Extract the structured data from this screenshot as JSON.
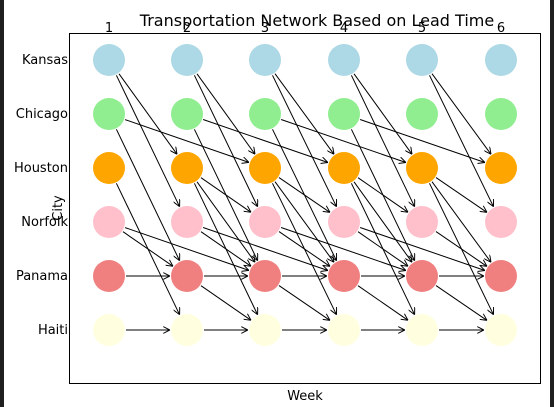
{
  "title": "Transportation Network Based on Lead Time",
  "xlabel": "Week",
  "ylabel": "City",
  "weeks": [
    "1",
    "2",
    "3",
    "4",
    "5",
    "6"
  ],
  "cities": [
    {
      "name": "Kansas",
      "color": "#ADD8E6"
    },
    {
      "name": "Chicago",
      "color": "#90EE90"
    },
    {
      "name": "Houston",
      "color": "#FFA500"
    },
    {
      "name": "Norfolk",
      "color": "#FFC0CB"
    },
    {
      "name": "Panama",
      "color": "#F08080"
    },
    {
      "name": "Haiti",
      "color": "#FFFFE0"
    }
  ],
  "edge_color": "#000000",
  "edges": [
    {
      "from": {
        "city": "Kansas",
        "week": 1
      },
      "to": {
        "city": "Houston",
        "week": 2
      }
    },
    {
      "from": {
        "city": "Kansas",
        "week": 1
      },
      "to": {
        "city": "Norfolk",
        "week": 2
      }
    },
    {
      "from": {
        "city": "Kansas",
        "week": 2
      },
      "to": {
        "city": "Houston",
        "week": 3
      }
    },
    {
      "from": {
        "city": "Kansas",
        "week": 2
      },
      "to": {
        "city": "Norfolk",
        "week": 3
      }
    },
    {
      "from": {
        "city": "Kansas",
        "week": 3
      },
      "to": {
        "city": "Houston",
        "week": 4
      }
    },
    {
      "from": {
        "city": "Kansas",
        "week": 3
      },
      "to": {
        "city": "Norfolk",
        "week": 4
      }
    },
    {
      "from": {
        "city": "Kansas",
        "week": 4
      },
      "to": {
        "city": "Houston",
        "week": 5
      }
    },
    {
      "from": {
        "city": "Kansas",
        "week": 4
      },
      "to": {
        "city": "Norfolk",
        "week": 5
      }
    },
    {
      "from": {
        "city": "Kansas",
        "week": 5
      },
      "to": {
        "city": "Houston",
        "week": 6
      }
    },
    {
      "from": {
        "city": "Kansas",
        "week": 5
      },
      "to": {
        "city": "Norfolk",
        "week": 6
      }
    },
    {
      "from": {
        "city": "Chicago",
        "week": 1
      },
      "to": {
        "city": "Houston",
        "week": 3
      }
    },
    {
      "from": {
        "city": "Chicago",
        "week": 1
      },
      "to": {
        "city": "Panama",
        "week": 2
      }
    },
    {
      "from": {
        "city": "Chicago",
        "week": 2
      },
      "to": {
        "city": "Houston",
        "week": 4
      }
    },
    {
      "from": {
        "city": "Chicago",
        "week": 2
      },
      "to": {
        "city": "Panama",
        "week": 3
      }
    },
    {
      "from": {
        "city": "Chicago",
        "week": 3
      },
      "to": {
        "city": "Houston",
        "week": 5
      }
    },
    {
      "from": {
        "city": "Chicago",
        "week": 3
      },
      "to": {
        "city": "Panama",
        "week": 4
      }
    },
    {
      "from": {
        "city": "Chicago",
        "week": 4
      },
      "to": {
        "city": "Houston",
        "week": 6
      }
    },
    {
      "from": {
        "city": "Chicago",
        "week": 4
      },
      "to": {
        "city": "Panama",
        "week": 5
      }
    },
    {
      "from": {
        "city": "Houston",
        "week": 1
      },
      "to": {
        "city": "Haiti",
        "week": 2
      }
    },
    {
      "from": {
        "city": "Houston",
        "week": 2
      },
      "to": {
        "city": "Norfolk",
        "week": 3
      }
    },
    {
      "from": {
        "city": "Houston",
        "week": 2
      },
      "to": {
        "city": "Panama",
        "week": 3
      }
    },
    {
      "from": {
        "city": "Houston",
        "week": 2
      },
      "to": {
        "city": "Haiti",
        "week": 3
      }
    },
    {
      "from": {
        "city": "Houston",
        "week": 3
      },
      "to": {
        "city": "Norfolk",
        "week": 4
      }
    },
    {
      "from": {
        "city": "Houston",
        "week": 3
      },
      "to": {
        "city": "Panama",
        "week": 4
      }
    },
    {
      "from": {
        "city": "Houston",
        "week": 3
      },
      "to": {
        "city": "Haiti",
        "week": 4
      }
    },
    {
      "from": {
        "city": "Houston",
        "week": 4
      },
      "to": {
        "city": "Norfolk",
        "week": 5
      }
    },
    {
      "from": {
        "city": "Houston",
        "week": 4
      },
      "to": {
        "city": "Panama",
        "week": 5
      }
    },
    {
      "from": {
        "city": "Houston",
        "week": 4
      },
      "to": {
        "city": "Haiti",
        "week": 5
      }
    },
    {
      "from": {
        "city": "Houston",
        "week": 5
      },
      "to": {
        "city": "Norfolk",
        "week": 6
      }
    },
    {
      "from": {
        "city": "Houston",
        "week": 5
      },
      "to": {
        "city": "Panama",
        "week": 6
      }
    },
    {
      "from": {
        "city": "Houston",
        "week": 5
      },
      "to": {
        "city": "Haiti",
        "week": 6
      }
    },
    {
      "from": {
        "city": "Norfolk",
        "week": 1
      },
      "to": {
        "city": "Panama",
        "week": 3
      }
    },
    {
      "from": {
        "city": "Norfolk",
        "week": 1
      },
      "to": {
        "city": "Panama",
        "week": 2
      }
    },
    {
      "from": {
        "city": "Norfolk",
        "week": 2
      },
      "to": {
        "city": "Panama",
        "week": 4
      }
    },
    {
      "from": {
        "city": "Norfolk",
        "week": 2
      },
      "to": {
        "city": "Panama",
        "week": 3
      }
    },
    {
      "from": {
        "city": "Norfolk",
        "week": 3
      },
      "to": {
        "city": "Panama",
        "week": 5
      }
    },
    {
      "from": {
        "city": "Norfolk",
        "week": 3
      },
      "to": {
        "city": "Panama",
        "week": 4
      }
    },
    {
      "from": {
        "city": "Norfolk",
        "week": 4
      },
      "to": {
        "city": "Panama",
        "week": 6
      }
    },
    {
      "from": {
        "city": "Norfolk",
        "week": 4
      },
      "to": {
        "city": "Panama",
        "week": 5
      }
    },
    {
      "from": {
        "city": "Norfolk",
        "week": 5
      },
      "to": {
        "city": "Panama",
        "week": 6
      }
    },
    {
      "from": {
        "city": "Panama",
        "week": 1
      },
      "to": {
        "city": "Panama",
        "week": 2
      }
    },
    {
      "from": {
        "city": "Panama",
        "week": 2
      },
      "to": {
        "city": "Panama",
        "week": 3
      }
    },
    {
      "from": {
        "city": "Panama",
        "week": 3
      },
      "to": {
        "city": "Panama",
        "week": 4
      }
    },
    {
      "from": {
        "city": "Panama",
        "week": 4
      },
      "to": {
        "city": "Panama",
        "week": 5
      }
    },
    {
      "from": {
        "city": "Panama",
        "week": 5
      },
      "to": {
        "city": "Panama",
        "week": 6
      }
    },
    {
      "from": {
        "city": "Panama",
        "week": 2
      },
      "to": {
        "city": "Haiti",
        "week": 3
      }
    },
    {
      "from": {
        "city": "Panama",
        "week": 3
      },
      "to": {
        "city": "Haiti",
        "week": 4
      }
    },
    {
      "from": {
        "city": "Panama",
        "week": 4
      },
      "to": {
        "city": "Haiti",
        "week": 5
      }
    },
    {
      "from": {
        "city": "Panama",
        "week": 5
      },
      "to": {
        "city": "Haiti",
        "week": 6
      }
    },
    {
      "from": {
        "city": "Haiti",
        "week": 1
      },
      "to": {
        "city": "Haiti",
        "week": 2
      }
    },
    {
      "from": {
        "city": "Haiti",
        "week": 2
      },
      "to": {
        "city": "Haiti",
        "week": 3
      }
    },
    {
      "from": {
        "city": "Haiti",
        "week": 3
      },
      "to": {
        "city": "Haiti",
        "week": 4
      }
    },
    {
      "from": {
        "city": "Haiti",
        "week": 4
      },
      "to": {
        "city": "Haiti",
        "week": 5
      }
    },
    {
      "from": {
        "city": "Haiti",
        "week": 5
      },
      "to": {
        "city": "Haiti",
        "week": 6
      }
    }
  ]
}
